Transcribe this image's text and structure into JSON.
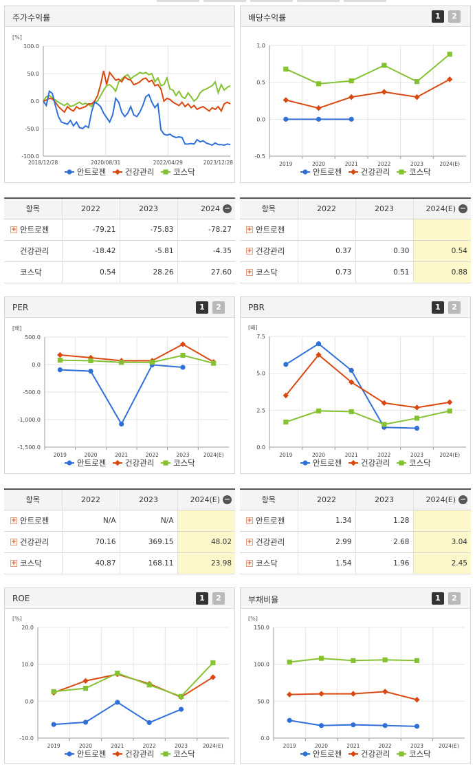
{
  "panels": {
    "stock": {
      "title": "주가수익률"
    },
    "div": {
      "title": "배당수익률",
      "btn1": "1",
      "btn2": "2"
    },
    "per": {
      "title": "PER",
      "btn1": "1",
      "btn2": "2"
    },
    "pbr": {
      "title": "PBR",
      "btn1": "1",
      "btn2": "2"
    },
    "roe": {
      "title": "ROE",
      "btn1": "1",
      "btn2": "2"
    },
    "debt": {
      "title": "부채비율",
      "btn1": "1",
      "btn2": "2"
    }
  },
  "colors": {
    "blue": "#2f6fd8",
    "red": "#d9480f",
    "green": "#84c232",
    "grid": "#e4e4e4",
    "axis": "#999999"
  },
  "legend": [
    "안트로젠",
    "건강관리",
    "코스닥"
  ],
  "chart_data": [
    {
      "id": "stock",
      "type": "line",
      "unit": "[%]",
      "ylim": [
        -100,
        100
      ],
      "yticks": [
        "100.0",
        "50.0",
        "0.0",
        "-50.0",
        "-100.0"
      ],
      "xlabels": [
        "2018/12/28",
        "2020/08/31",
        "2022/04/29",
        "2023/12/28"
      ],
      "series": [
        {
          "name": "안트로젠",
          "color": "#2f6fd8",
          "values": [
            0,
            -8,
            18,
            14,
            -8,
            -28,
            -38,
            -40,
            -42,
            -35,
            -45,
            -38,
            -48,
            -50,
            -45,
            -48,
            -20,
            -2,
            -5,
            -10,
            -22,
            -30,
            -38,
            -25,
            5,
            -2,
            -20,
            -28,
            -22,
            -10,
            -25,
            -28,
            -20,
            -8,
            8,
            12,
            -2,
            -12,
            -5,
            -52,
            -60,
            -62,
            -60,
            -64,
            -66,
            -65,
            -66,
            -78,
            -78,
            -77,
            -78,
            -70,
            -74,
            -72,
            -76,
            -78,
            -80,
            -76,
            -79,
            -79,
            -80,
            -78,
            -79
          ]
        },
        {
          "name": "건강관리",
          "color": "#d9480f",
          "values": [
            0,
            2,
            5,
            4,
            -2,
            -10,
            -15,
            -20,
            -10,
            -15,
            -18,
            -10,
            -14,
            -12,
            -10,
            -5,
            -5,
            0,
            10,
            30,
            55,
            30,
            52,
            45,
            38,
            40,
            35,
            44,
            40,
            38,
            30,
            32,
            35,
            40,
            42,
            35,
            38,
            28,
            30,
            22,
            0,
            5,
            3,
            -2,
            -5,
            -8,
            -2,
            -10,
            -5,
            -12,
            -8,
            -15,
            -12,
            -10,
            -14,
            -18,
            -12,
            -15,
            -10,
            -18,
            -5,
            -2,
            -5
          ]
        },
        {
          "name": "코스닥",
          "color": "#84c232",
          "values": [
            0,
            8,
            10,
            6,
            2,
            -2,
            -5,
            -8,
            -4,
            -10,
            -8,
            -5,
            -2,
            -6,
            -4,
            -6,
            -10,
            -2,
            0,
            10,
            20,
            28,
            30,
            25,
            18,
            35,
            40,
            45,
            48,
            40,
            45,
            48,
            52,
            50,
            52,
            48,
            50,
            35,
            42,
            28,
            30,
            42,
            22,
            20,
            10,
            18,
            8,
            5,
            15,
            8,
            0,
            5,
            15,
            20,
            22,
            25,
            28,
            35,
            15,
            30,
            20,
            25,
            28
          ]
        }
      ]
    },
    {
      "id": "div",
      "type": "line",
      "unit": "",
      "ylim": [
        -0.5,
        1.0
      ],
      "yticks": [
        "1.0",
        "0.5",
        "0.0",
        "-0.5"
      ],
      "categories": [
        "2019",
        "2020",
        "2021",
        "2022",
        "2023",
        "2024(E)"
      ],
      "series": [
        {
          "name": "안트로젠",
          "color": "#2f6fd8",
          "marker": "circle",
          "values": [
            0.0,
            0.0,
            0.0,
            null,
            null,
            null
          ]
        },
        {
          "name": "건강관리",
          "color": "#d9480f",
          "marker": "diamond",
          "values": [
            0.26,
            0.15,
            0.3,
            0.37,
            0.3,
            0.54
          ]
        },
        {
          "name": "코스닥",
          "color": "#84c232",
          "marker": "square",
          "values": [
            0.68,
            0.48,
            0.52,
            0.73,
            0.51,
            0.88
          ]
        }
      ]
    },
    {
      "id": "per",
      "type": "line",
      "unit": "[배]",
      "ylim": [
        -1500,
        500
      ],
      "yticks": [
        "500.0",
        "0.0",
        "-500.0",
        "-1,000.0",
        "-1,500.0"
      ],
      "categories": [
        "2019",
        "2020",
        "2021",
        "2022",
        "2023",
        "2024(E)"
      ],
      "series": [
        {
          "name": "안트로젠",
          "color": "#2f6fd8",
          "marker": "circle",
          "values": [
            -95,
            -120,
            -1080,
            -5,
            -50,
            null
          ]
        },
        {
          "name": "건강관리",
          "color": "#d9480f",
          "marker": "diamond",
          "values": [
            175,
            125,
            70,
            70.16,
            369.15,
            48.02
          ]
        },
        {
          "name": "코스닥",
          "color": "#84c232",
          "marker": "square",
          "values": [
            80,
            70,
            40,
            40.87,
            168.11,
            23.98
          ]
        }
      ]
    },
    {
      "id": "pbr",
      "type": "line",
      "unit": "[배]",
      "ylim": [
        0,
        7.5
      ],
      "yticks": [
        "7.5",
        "5.0",
        "2.5",
        "0.0"
      ],
      "categories": [
        "2019",
        "2020",
        "2021",
        "2022",
        "2023",
        "2024(E)"
      ],
      "series": [
        {
          "name": "안트로젠",
          "color": "#2f6fd8",
          "marker": "circle",
          "values": [
            5.6,
            7.0,
            5.2,
            1.34,
            1.28,
            null
          ]
        },
        {
          "name": "건강관리",
          "color": "#d9480f",
          "marker": "diamond",
          "values": [
            3.5,
            6.25,
            4.4,
            2.99,
            2.68,
            3.04
          ]
        },
        {
          "name": "코스닥",
          "color": "#84c232",
          "marker": "square",
          "values": [
            1.7,
            2.45,
            2.4,
            1.54,
            1.96,
            2.45
          ]
        }
      ]
    },
    {
      "id": "roe",
      "type": "line",
      "unit": "[%]",
      "ylim": [
        -10,
        20
      ],
      "yticks": [
        "20.0",
        "10.0",
        "0.0",
        "-10.0"
      ],
      "categories": [
        "2019",
        "2020",
        "2021",
        "2022",
        "2023",
        "2024(E)"
      ],
      "series": [
        {
          "name": "안트로젠",
          "color": "#2f6fd8",
          "marker": "circle",
          "values": [
            -6.3,
            -5.7,
            -0.3,
            -5.8,
            -2.2,
            null
          ]
        },
        {
          "name": "건강관리",
          "color": "#d9480f",
          "marker": "diamond",
          "values": [
            2.3,
            5.5,
            7.3,
            4.7,
            1.1,
            6.5
          ]
        },
        {
          "name": "코스닥",
          "color": "#84c232",
          "marker": "square",
          "values": [
            2.6,
            3.5,
            7.6,
            4.4,
            1.3,
            10.4
          ]
        }
      ]
    },
    {
      "id": "debt",
      "type": "line",
      "unit": "[%]",
      "ylim": [
        0,
        150
      ],
      "yticks": [
        "150.0",
        "100.0",
        "50.0",
        "0.0"
      ],
      "categories": [
        "2019",
        "2020",
        "2021",
        "2022",
        "2023",
        "2024(E)"
      ],
      "series": [
        {
          "name": "안트로젠",
          "color": "#2f6fd8",
          "marker": "circle",
          "values": [
            24,
            17,
            18,
            17,
            16,
            null
          ]
        },
        {
          "name": "건강관리",
          "color": "#d9480f",
          "marker": "diamond",
          "values": [
            59,
            60,
            60,
            63,
            52,
            null
          ]
        },
        {
          "name": "코스닥",
          "color": "#84c232",
          "marker": "square",
          "values": [
            103,
            108,
            105,
            106,
            105,
            null
          ]
        }
      ]
    }
  ],
  "tables": {
    "stock": {
      "headers": [
        "항목",
        "2022",
        "2023",
        "2024"
      ],
      "rows": [
        {
          "label": "안트로젠",
          "plus": true,
          "values": [
            "-79.21",
            "-75.83",
            "-78.27"
          ]
        },
        {
          "label": "건강관리",
          "plus": false,
          "values": [
            "-18.42",
            "-5.81",
            "-4.35"
          ]
        },
        {
          "label": "코스닥",
          "plus": false,
          "values": [
            "0.54",
            "28.26",
            "27.60"
          ]
        }
      ]
    },
    "div": {
      "headers": [
        "항목",
        "2022",
        "2023",
        "2024(E)"
      ],
      "rows": [
        {
          "label": "안트로젠",
          "plus": true,
          "values": [
            "",
            "",
            ""
          ]
        },
        {
          "label": "건강관리",
          "plus": true,
          "values": [
            "0.37",
            "0.30",
            "0.54"
          ]
        },
        {
          "label": "코스닥",
          "plus": true,
          "values": [
            "0.73",
            "0.51",
            "0.88"
          ]
        }
      ]
    },
    "per": {
      "headers": [
        "항목",
        "2022",
        "2023",
        "2024(E)"
      ],
      "rows": [
        {
          "label": "안트로젠",
          "plus": true,
          "values": [
            "N/A",
            "N/A",
            ""
          ]
        },
        {
          "label": "건강관리",
          "plus": true,
          "values": [
            "70.16",
            "369.15",
            "48.02"
          ]
        },
        {
          "label": "코스닥",
          "plus": true,
          "values": [
            "40.87",
            "168.11",
            "23.98"
          ]
        }
      ]
    },
    "pbr": {
      "headers": [
        "항목",
        "2022",
        "2023",
        "2024(E)"
      ],
      "rows": [
        {
          "label": "안트로젠",
          "plus": true,
          "values": [
            "1.34",
            "1.28",
            ""
          ]
        },
        {
          "label": "건강관리",
          "plus": true,
          "values": [
            "2.99",
            "2.68",
            "3.04"
          ]
        },
        {
          "label": "코스닥",
          "plus": true,
          "values": [
            "1.54",
            "1.96",
            "2.45"
          ]
        }
      ]
    }
  }
}
